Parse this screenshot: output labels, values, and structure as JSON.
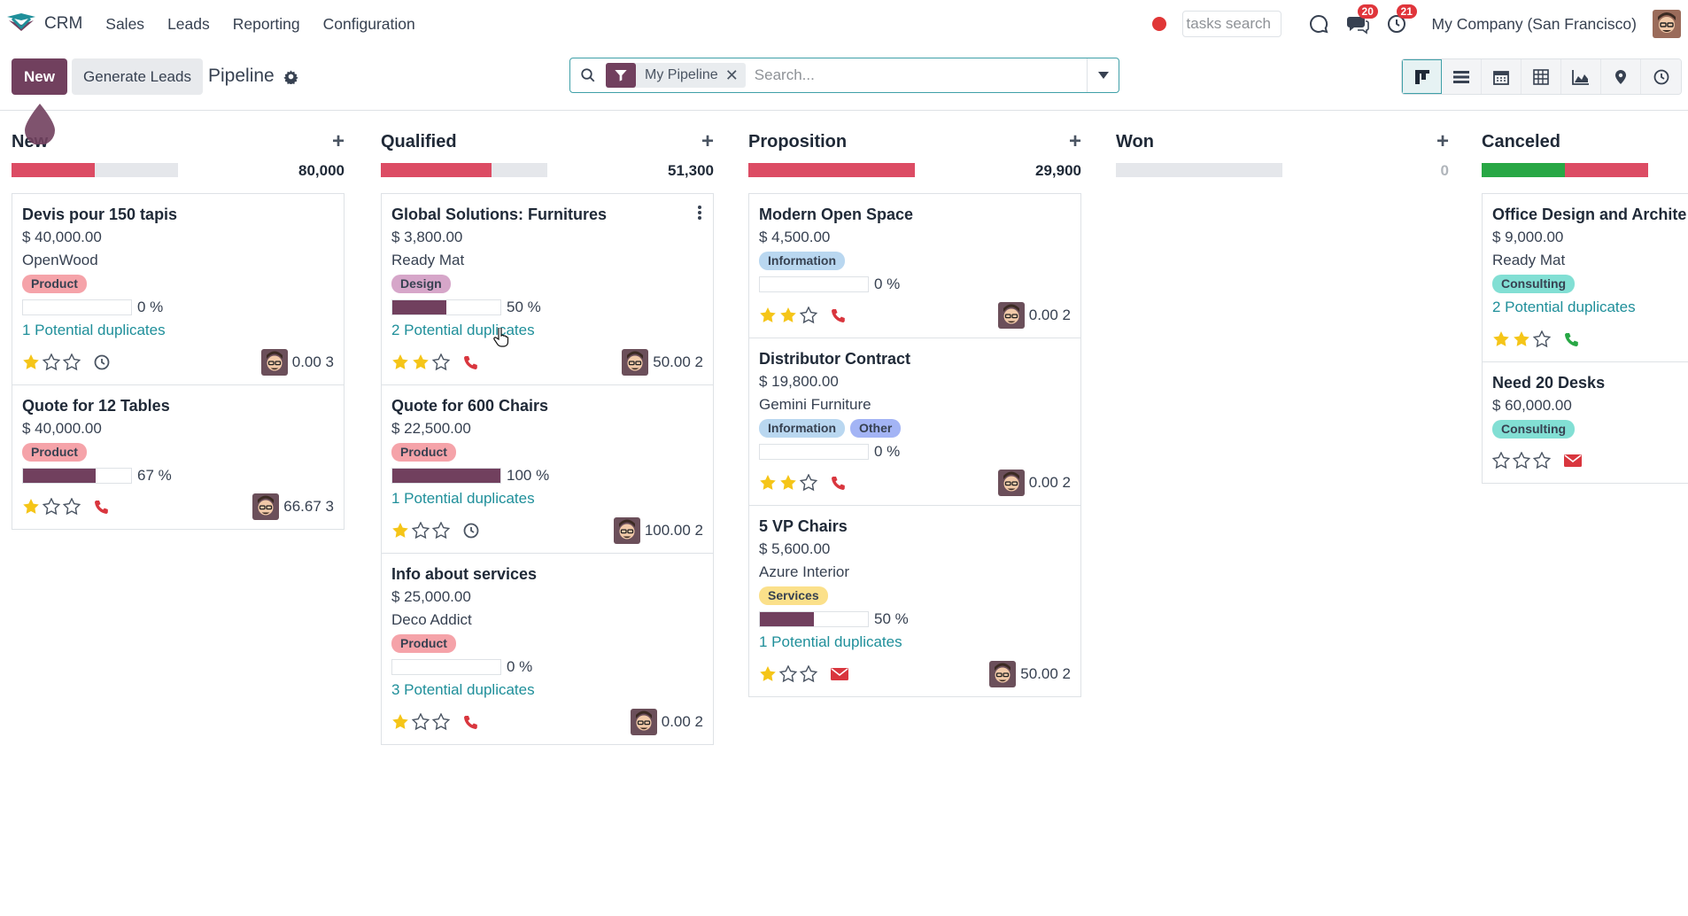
{
  "app": {
    "name": "CRM"
  },
  "nav": {
    "menu": [
      "Sales",
      "Leads",
      "Reporting",
      "Configuration"
    ]
  },
  "systray": {
    "tasks_search_placeholder": "tasks search",
    "messages_count": "20",
    "activities_count": "21",
    "company": "My Company (San Francisco)"
  },
  "control": {
    "new_label": "New",
    "generate_label": "Generate Leads",
    "breadcrumb": "Pipeline",
    "search": {
      "facet": "My Pipeline",
      "placeholder": "Search..."
    },
    "views": [
      "kanban",
      "list",
      "calendar",
      "pivot",
      "graph",
      "map",
      "activity"
    ]
  },
  "colors": {
    "brand": "#71405e",
    "progress_red": "#dc4c64",
    "progress_green": "#28a745",
    "link": "#1f8f9a",
    "star": "#f5c518"
  },
  "columns": [
    {
      "title": "New",
      "total": "80,000",
      "cards": [
        {
          "title": "Devis pour 150 tapis",
          "amount": "$ 40,000.00",
          "company": "OpenWood",
          "tags": [
            "Product"
          ],
          "probability": 0,
          "probability_text": "0 %",
          "duplicates": "1 Potential duplicates",
          "stars": 1,
          "activity": "clock-icon",
          "footer": "0.00 3"
        },
        {
          "title": "Quote for 12 Tables",
          "amount": "$ 40,000.00",
          "tags": [
            "Product"
          ],
          "probability": 67,
          "probability_text": "67 %",
          "stars": 1,
          "activity": "phone-icon",
          "footer": "66.67 3"
        }
      ]
    },
    {
      "title": "Qualified",
      "total": "51,300",
      "cards": [
        {
          "title": "Global Solutions: Furnitures",
          "amount": "$ 3,800.00",
          "company": "Ready Mat",
          "tags": [
            "Design"
          ],
          "probability": 50,
          "probability_text": "50 %",
          "duplicates": "2 Potential duplicates",
          "stars": 2,
          "activity": "phone-icon",
          "footer": "50.00 2"
        },
        {
          "title": "Quote for 600 Chairs",
          "amount": "$ 22,500.00",
          "tags": [
            "Product"
          ],
          "probability": 100,
          "probability_text": "100 %",
          "duplicates": "1 Potential duplicates",
          "stars": 1,
          "activity": "clock-icon",
          "footer": "100.00 2"
        },
        {
          "title": "Info about services",
          "amount": "$ 25,000.00",
          "company": "Deco Addict",
          "tags": [
            "Product"
          ],
          "probability": 0,
          "probability_text": "0 %",
          "duplicates": "3 Potential duplicates",
          "stars": 1,
          "activity": "phone-icon",
          "footer": "0.00 2"
        }
      ]
    },
    {
      "title": "Proposition",
      "total": "29,900",
      "cards": [
        {
          "title": "Modern Open Space",
          "amount": "$ 4,500.00",
          "tags": [
            "Information"
          ],
          "probability": 0,
          "probability_text": "0 %",
          "stars": 2,
          "activity": "phone-icon",
          "footer": "0.00 2"
        },
        {
          "title": "Distributor Contract",
          "amount": "$ 19,800.00",
          "company": "Gemini Furniture",
          "tags": [
            "Information",
            "Other"
          ],
          "probability": 0,
          "probability_text": "0 %",
          "stars": 2,
          "activity": "phone-icon",
          "footer": "0.00 2"
        },
        {
          "title": "5 VP Chairs",
          "amount": "$ 5,600.00",
          "company": "Azure Interior",
          "tags": [
            "Services"
          ],
          "probability": 50,
          "probability_text": "50 %",
          "duplicates": "1 Potential duplicates",
          "stars": 1,
          "activity": "envelope-icon",
          "footer": "50.00 2"
        }
      ]
    },
    {
      "title": "Won",
      "total": "0",
      "cards": []
    },
    {
      "title": "Canceled",
      "total": "",
      "cards": [
        {
          "title": "Office Design and Archite",
          "amount": "$ 9,000.00",
          "company": "Ready Mat",
          "tags": [
            "Consulting"
          ],
          "duplicates": "2 Potential duplicates",
          "stars": 2,
          "activity": "phone-green-icon"
        },
        {
          "title": "Need 20 Desks",
          "amount": "$ 60,000.00",
          "tags": [
            "Consulting"
          ],
          "stars": 0,
          "activity": "envelope-icon"
        }
      ]
    }
  ]
}
